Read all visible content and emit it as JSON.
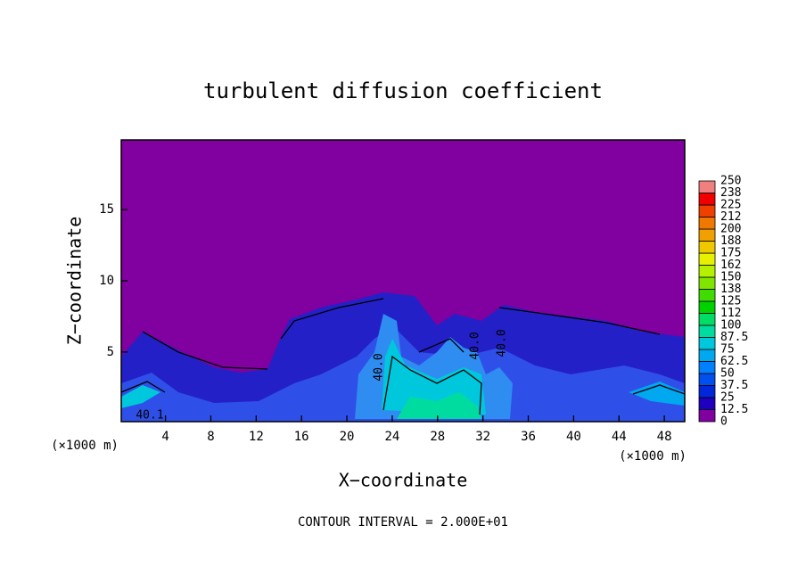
{
  "chart_data": {
    "type": "contour",
    "title": "turbulent diffusion coefficient",
    "xlabel": "X−coordinate",
    "ylabel": "Z−coordinate",
    "x_unit": "(×1000 m)",
    "footnote": "CONTOUR INTERVAL = 2.000E+01",
    "contour_labels": [
      "40.0",
      "40.0",
      "40.0",
      "40.1"
    ],
    "xlim": [
      0.1,
      49.8
    ],
    "ylim": [
      0.1,
      19.9
    ],
    "xticks": [
      4,
      8,
      12,
      16,
      20,
      24,
      28,
      32,
      36,
      40,
      44,
      48
    ],
    "yticks": [
      5,
      10,
      15
    ],
    "colorbar": {
      "levels": [
        0,
        12.5,
        25,
        37.5,
        50,
        62.5,
        75,
        87.5,
        100,
        112,
        125,
        138,
        150,
        162,
        175,
        188,
        200,
        212,
        225,
        238,
        250
      ],
      "colors": [
        "#8000a0",
        "#2000c0",
        "#0028d8",
        "#0050f0",
        "#0080ff",
        "#00a8f0",
        "#00c8dc",
        "#00dca0",
        "#00dc64",
        "#00d200",
        "#40dc00",
        "#80e600",
        "#b4f000",
        "#e6f000",
        "#f0c800",
        "#f0a000",
        "#f07800",
        "#f04000",
        "#f00000",
        "#f08080"
      ]
    }
  }
}
